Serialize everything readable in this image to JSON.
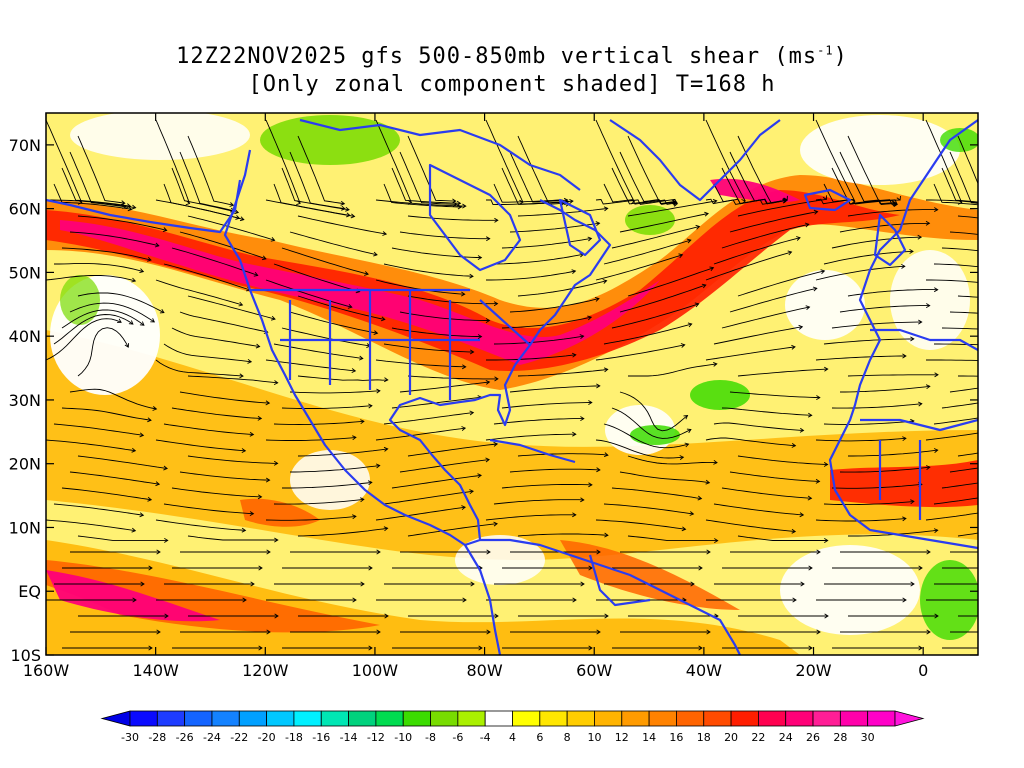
{
  "title": {
    "line1_prefix": "12Z22NOV2025 gfs 500-850mb vertical shear (ms",
    "line1_sup": "-1",
    "line1_suffix": ")",
    "line2": "[Only zonal component shaded] T=168 h"
  },
  "map": {
    "lon_range": [
      -160,
      10
    ],
    "lat_range": [
      -10,
      75
    ],
    "x_ticks": [
      {
        "value": -160,
        "label": "160W"
      },
      {
        "value": -140,
        "label": "140W"
      },
      {
        "value": -120,
        "label": "120W"
      },
      {
        "value": -100,
        "label": "100W"
      },
      {
        "value": -80,
        "label": "80W"
      },
      {
        "value": -60,
        "label": "60W"
      },
      {
        "value": -40,
        "label": "40W"
      },
      {
        "value": -20,
        "label": "20W"
      },
      {
        "value": 0,
        "label": "0"
      }
    ],
    "y_ticks": [
      {
        "value": -10,
        "label": "10S"
      },
      {
        "value": 0,
        "label": "EQ"
      },
      {
        "value": 10,
        "label": "10N"
      },
      {
        "value": 20,
        "label": "20N"
      },
      {
        "value": 30,
        "label": "30N"
      },
      {
        "value": 40,
        "label": "40N"
      },
      {
        "value": 50,
        "label": "50N"
      },
      {
        "value": 60,
        "label": "60N"
      },
      {
        "value": 70,
        "label": "70N"
      }
    ],
    "coast_color": "#2a3cf0",
    "streamline_color": "#000000"
  },
  "colorbar": {
    "labels": [
      "-30",
      "-28",
      "-26",
      "-24",
      "-22",
      "-20",
      "-18",
      "-16",
      "-14",
      "-12",
      "-10",
      "-8",
      "-6",
      "-4",
      "4",
      "6",
      "8",
      "10",
      "12",
      "14",
      "16",
      "18",
      "20",
      "22",
      "24",
      "26",
      "28",
      "30"
    ],
    "colors": [
      "#0a0aff",
      "#1e3cff",
      "#1464ff",
      "#1482ff",
      "#00a0ff",
      "#00c8ff",
      "#00f0ff",
      "#00e6b4",
      "#00d27d",
      "#00dc50",
      "#3cdc00",
      "#78dc00",
      "#aaf000",
      "#ffffff",
      "#ffff00",
      "#ffe600",
      "#ffcd00",
      "#ffb400",
      "#ff9b00",
      "#ff8200",
      "#ff6400",
      "#ff4b00",
      "#ff1e00",
      "#ff0050",
      "#ff0078",
      "#ff1e96",
      "#ff00aa",
      "#ff00c8"
    ],
    "left_end_color": "#0000e6",
    "right_end_color": "#ff14dc"
  }
}
